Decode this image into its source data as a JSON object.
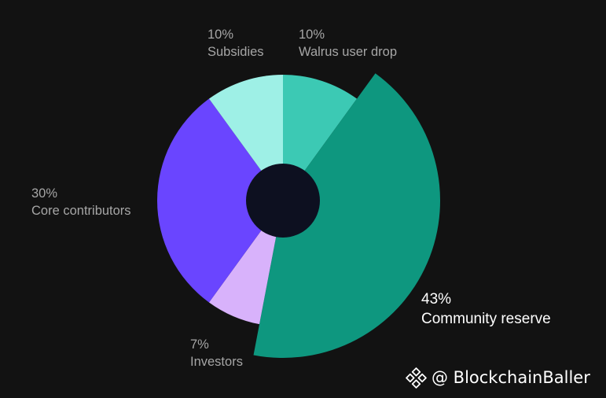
{
  "chart_data": {
    "type": "pie",
    "variant": "donut with exploded slice",
    "slices": [
      {
        "name": "Walrus user drop",
        "value": 10,
        "label": "10%",
        "color": "#3cc9b4",
        "exploded": false
      },
      {
        "name": "Community reserve",
        "value": 43,
        "label": "43%",
        "color": "#0e977f",
        "exploded": true
      },
      {
        "name": "Investors",
        "value": 7,
        "label": "7%",
        "color": "#d8b2fb",
        "exploded": false
      },
      {
        "name": "Core contributors",
        "value": 30,
        "label": "30%",
        "color": "#6a45ff",
        "exploded": false
      },
      {
        "name": "Subsidies",
        "value": 10,
        "label": "10%",
        "color": "#9ef0e6",
        "exploded": false
      }
    ],
    "hole_color": "#0d1020",
    "background": "#121212",
    "highlighted_label": "Community reserve"
  },
  "watermark": {
    "text": "@ BlockchainBaller",
    "icon": "binance-logo-icon"
  }
}
